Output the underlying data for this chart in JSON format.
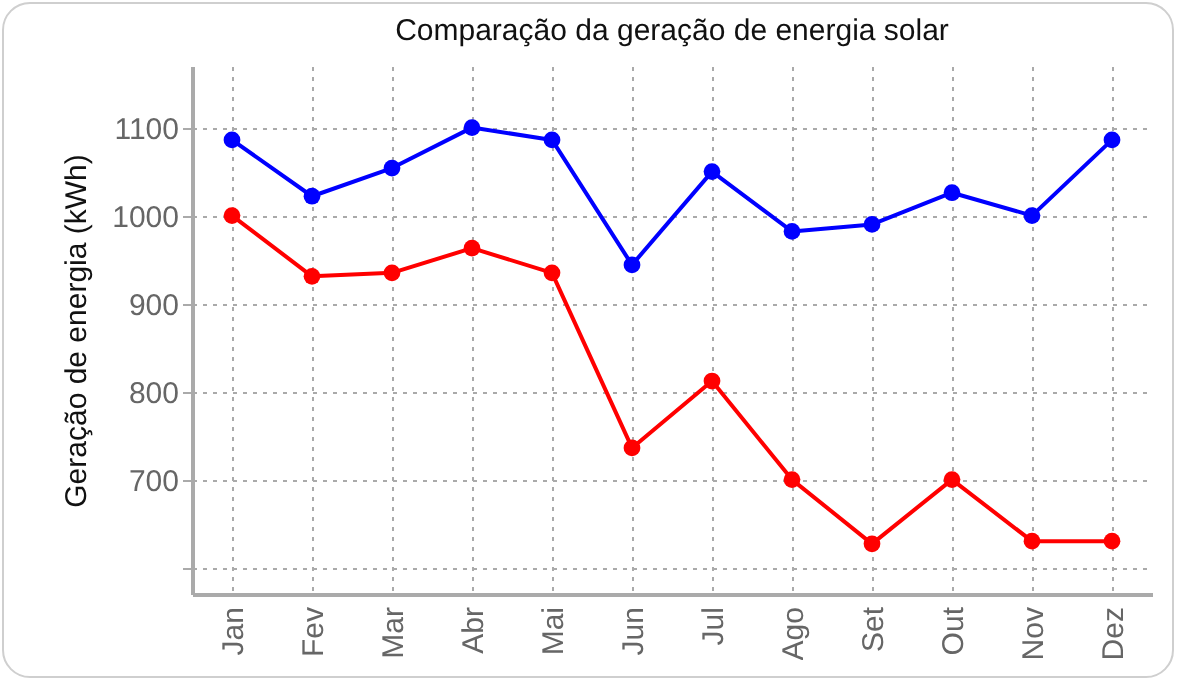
{
  "chart_data": {
    "type": "line",
    "title": "Comparação da geração de energia solar",
    "ylabel": "Geração de energia (kWh)",
    "categories": [
      "Jan",
      "Fev",
      "Mar",
      "Abr",
      "Mai",
      "Jun",
      "Jul",
      "Ago",
      "Set",
      "Out",
      "Nov",
      "Dez"
    ],
    "series": [
      {
        "color": "#ff0000",
        "values": [
          1000,
          931,
          935,
          963,
          935,
          736,
          812,
          700,
          627,
          700,
          630,
          630
        ]
      },
      {
        "color": "#0000ff",
        "values": [
          1086,
          1022,
          1054,
          1100,
          1086,
          944,
          1050,
          982,
          990,
          1026,
          1000,
          1086
        ]
      }
    ],
    "ylim": [
      570,
      1170
    ],
    "yticks": [
      {
        "value": 600,
        "label": null
      },
      700,
      800,
      900,
      1000,
      1100
    ],
    "grid": true,
    "marker": "circle",
    "line_style": "solid"
  }
}
